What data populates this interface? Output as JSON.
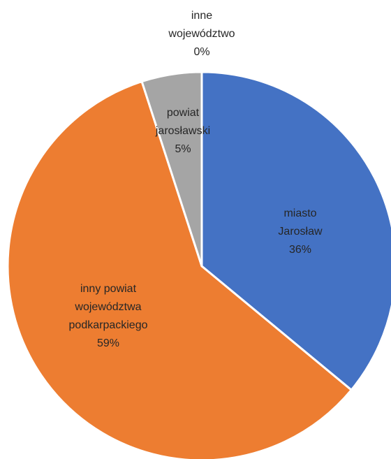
{
  "chart_data": {
    "type": "pie",
    "title": "",
    "slices": [
      {
        "label_lines": [
          "miasto",
          "Jarosław"
        ],
        "percent_label": "36%",
        "value": 36,
        "color": "#4472C4"
      },
      {
        "label_lines": [
          "inny powiat",
          "województwa",
          "podkarpackiego"
        ],
        "percent_label": "59%",
        "value": 59,
        "color": "#ED7D31"
      },
      {
        "label_lines": [
          "powiat",
          "jarosławski"
        ],
        "percent_label": "5%",
        "value": 5,
        "color": "#A5A5A5"
      },
      {
        "label_lines": [
          "inne",
          "województwo"
        ],
        "percent_label": "0%",
        "value": 0,
        "color": "#FFC000"
      }
    ]
  }
}
